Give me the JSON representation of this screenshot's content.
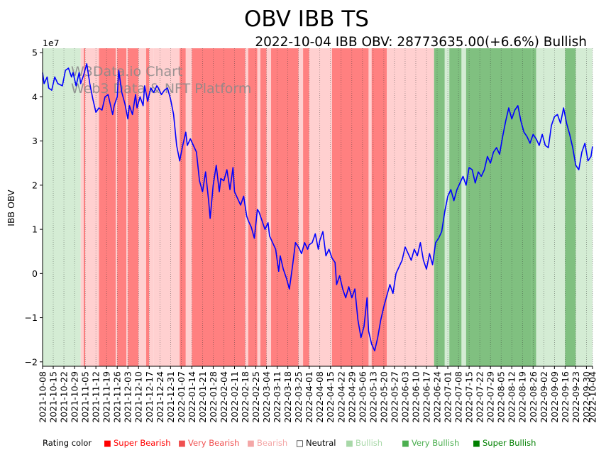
{
  "chart_data": {
    "type": "line",
    "title": "OBV IBB TS",
    "subtitle": "2022-10-04 IBB OBV: 28773635.00(+6.6%) Bullish",
    "ylabel": "IBB OBV",
    "xlabel": "",
    "y_multiplier_label": "1e7",
    "ylim": [
      -2.1,
      5.1
    ],
    "yticks": [
      "5",
      "4",
      "3",
      "2",
      "1",
      "0",
      "−1",
      "−2"
    ],
    "ytick_values": [
      5,
      4,
      3,
      2,
      1,
      0,
      -1,
      -2
    ],
    "grid": "vertical dotted lines at each x tick",
    "xlim": [
      "2021-10-08",
      "2022-10-04"
    ],
    "xticks": [
      "2021-10-08",
      "2021-10-15",
      "2021-10-22",
      "2021-10-29",
      "2021-11-05",
      "2021-11-12",
      "2021-11-19",
      "2021-11-26",
      "2021-12-03",
      "2021-12-10",
      "2021-12-17",
      "2021-12-24",
      "2021-12-31",
      "2022-01-07",
      "2022-01-14",
      "2022-01-21",
      "2022-01-28",
      "2022-02-04",
      "2022-02-11",
      "2022-02-18",
      "2022-02-25",
      "2022-03-04",
      "2022-03-11",
      "2022-03-18",
      "2022-03-25",
      "2022-04-01",
      "2022-04-08",
      "2022-04-15",
      "2022-04-22",
      "2022-04-29",
      "2022-05-06",
      "2022-05-13",
      "2022-05-20",
      "2022-05-27",
      "2022-06-03",
      "2022-06-10",
      "2022-06-17",
      "2022-06-24",
      "2022-07-01",
      "2022-07-08",
      "2022-07-15",
      "2022-07-22",
      "2022-07-29",
      "2022-08-05",
      "2022-08-12",
      "2022-08-19",
      "2022-08-26",
      "2022-09-02",
      "2022-09-09",
      "2022-09-16",
      "2022-09-23",
      "2022-09-30",
      "2022-10-04"
    ],
    "series": [
      {
        "color": "#0000ff",
        "x": [
          "2021-10-08",
          "2021-10-09",
          "2021-10-11",
          "2021-10-12",
          "2021-10-14",
          "2021-10-16",
          "2021-10-18",
          "2021-10-21",
          "2021-10-23",
          "2021-10-25",
          "2021-10-27",
          "2021-10-28",
          "2021-10-30",
          "2021-11-01",
          "2021-11-02",
          "2021-11-04",
          "2021-11-06",
          "2021-11-08",
          "2021-11-10",
          "2021-11-12",
          "2021-11-14",
          "2021-11-16",
          "2021-11-18",
          "2021-11-20",
          "2021-11-21",
          "2021-11-23",
          "2021-11-24",
          "2021-11-26",
          "2021-11-27",
          "2021-11-29",
          "2021-12-01",
          "2021-12-03",
          "2021-12-04",
          "2021-12-06",
          "2021-12-08",
          "2021-12-09",
          "2021-12-11",
          "2021-12-13",
          "2021-12-14",
          "2021-12-16",
          "2021-12-18",
          "2021-12-20",
          "2021-12-22",
          "2021-12-23",
          "2021-12-25",
          "2021-12-27",
          "2021-12-29",
          "2021-12-31",
          "2022-01-02",
          "2022-01-04",
          "2022-01-06",
          "2022-01-08",
          "2022-01-10",
          "2022-01-11",
          "2022-01-13",
          "2022-01-15",
          "2022-01-17",
          "2022-01-19",
          "2022-01-21",
          "2022-01-23",
          "2022-01-25",
          "2022-01-26",
          "2022-01-28",
          "2022-01-30",
          "2022-02-01",
          "2022-02-02",
          "2022-02-04",
          "2022-02-06",
          "2022-02-08",
          "2022-02-10",
          "2022-02-11",
          "2022-02-13",
          "2022-02-15",
          "2022-02-17",
          "2022-02-19",
          "2022-02-20",
          "2022-02-22",
          "2022-02-24",
          "2022-02-26",
          "2022-02-27",
          "2022-03-01",
          "2022-03-03",
          "2022-03-05",
          "2022-03-06",
          "2022-03-08",
          "2022-03-10",
          "2022-03-12",
          "2022-03-13",
          "2022-03-15",
          "2022-03-17",
          "2022-03-19",
          "2022-03-21",
          "2022-03-23",
          "2022-03-25",
          "2022-03-27",
          "2022-03-29",
          "2022-03-31",
          "2022-04-01",
          "2022-04-03",
          "2022-04-05",
          "2022-04-07",
          "2022-04-08",
          "2022-04-10",
          "2022-04-12",
          "2022-04-14",
          "2022-04-16",
          "2022-04-18",
          "2022-04-19",
          "2022-04-21",
          "2022-04-23",
          "2022-04-25",
          "2022-04-27",
          "2022-04-29",
          "2022-05-01",
          "2022-05-03",
          "2022-05-05",
          "2022-05-07",
          "2022-05-09",
          "2022-05-10",
          "2022-05-12",
          "2022-05-14",
          "2022-05-16",
          "2022-05-18",
          "2022-05-20",
          "2022-05-22",
          "2022-05-24",
          "2022-05-26",
          "2022-05-28",
          "2022-05-30",
          "2022-06-01",
          "2022-06-03",
          "2022-06-05",
          "2022-06-07",
          "2022-06-09",
          "2022-06-11",
          "2022-06-13",
          "2022-06-15",
          "2022-06-17",
          "2022-06-19",
          "2022-06-21",
          "2022-06-23",
          "2022-06-25",
          "2022-06-27",
          "2022-06-29",
          "2022-07-01",
          "2022-07-03",
          "2022-07-05",
          "2022-07-07",
          "2022-07-09",
          "2022-07-11",
          "2022-07-13",
          "2022-07-15",
          "2022-07-17",
          "2022-07-19",
          "2022-07-21",
          "2022-07-23",
          "2022-07-25",
          "2022-07-27",
          "2022-07-29",
          "2022-07-31",
          "2022-08-02",
          "2022-08-04",
          "2022-08-06",
          "2022-08-08",
          "2022-08-10",
          "2022-08-12",
          "2022-08-14",
          "2022-08-16",
          "2022-08-18",
          "2022-08-20",
          "2022-08-22",
          "2022-08-24",
          "2022-08-26",
          "2022-08-28",
          "2022-08-30",
          "2022-09-01",
          "2022-09-03",
          "2022-09-05",
          "2022-09-07",
          "2022-09-09",
          "2022-09-11",
          "2022-09-13",
          "2022-09-15",
          "2022-09-17",
          "2022-09-19",
          "2022-09-21",
          "2022-09-23",
          "2022-09-25",
          "2022-09-27",
          "2022-09-29",
          "2022-10-01",
          "2022-10-03",
          "2022-10-04"
        ],
        "values": [
          4.55,
          4.3,
          4.45,
          4.2,
          4.15,
          4.45,
          4.3,
          4.25,
          4.6,
          4.65,
          4.45,
          4.55,
          4.25,
          4.55,
          4.3,
          4.5,
          4.75,
          4.3,
          3.95,
          3.65,
          3.75,
          3.7,
          4.0,
          4.05,
          3.9,
          3.6,
          3.8,
          4.0,
          4.6,
          4.1,
          3.85,
          3.5,
          3.8,
          3.6,
          4.05,
          3.75,
          4.0,
          3.8,
          4.25,
          3.9,
          4.2,
          4.1,
          4.25,
          4.2,
          4.05,
          4.15,
          4.2,
          3.95,
          3.6,
          2.9,
          2.55,
          2.9,
          3.2,
          2.9,
          3.05,
          2.9,
          2.75,
          2.1,
          1.85,
          2.3,
          1.65,
          1.25,
          2.0,
          2.45,
          1.85,
          2.15,
          2.1,
          2.35,
          1.9,
          2.4,
          1.85,
          1.7,
          1.55,
          1.75,
          1.3,
          1.2,
          1.05,
          0.8,
          1.45,
          1.4,
          1.2,
          1.0,
          1.15,
          0.85,
          0.7,
          0.55,
          0.05,
          0.4,
          0.1,
          -0.1,
          -0.35,
          0.15,
          0.7,
          0.6,
          0.45,
          0.7,
          0.55,
          0.65,
          0.7,
          0.9,
          0.55,
          0.75,
          0.95,
          0.4,
          0.55,
          0.35,
          0.25,
          -0.25,
          -0.05,
          -0.35,
          -0.55,
          -0.3,
          -0.55,
          -0.35,
          -1.05,
          -1.45,
          -1.2,
          -0.55,
          -1.3,
          -1.6,
          -1.75,
          -1.45,
          -1.05,
          -0.75,
          -0.5,
          -0.25,
          -0.45,
          0.0,
          0.15,
          0.3,
          0.6,
          0.45,
          0.3,
          0.55,
          0.4,
          0.7,
          0.3,
          0.1,
          0.45,
          0.2,
          0.7,
          0.8,
          0.95,
          1.4,
          1.75,
          1.9,
          1.65,
          1.9,
          2.05,
          2.2,
          2.0,
          2.4,
          2.35,
          2.05,
          2.3,
          2.2,
          2.35,
          2.65,
          2.5,
          2.75,
          2.85,
          2.7,
          3.1,
          3.45,
          3.75,
          3.5,
          3.7,
          3.8,
          3.45,
          3.2,
          3.1,
          2.95,
          3.15,
          3.05,
          2.9,
          3.15,
          2.9,
          2.85,
          3.35,
          3.55,
          3.6,
          3.4,
          3.75,
          3.4,
          3.15,
          2.85,
          2.45,
          2.35,
          2.75,
          2.95,
          2.55,
          2.65,
          2.877
        ]
      }
    ],
    "rating_bands": [
      {
        "from": "2021-10-08",
        "to": "2021-11-02",
        "rating": "Bullish"
      },
      {
        "from": "2021-11-02",
        "to": "2021-11-04",
        "rating": "Bearish"
      },
      {
        "from": "2021-11-04",
        "to": "2021-11-05",
        "rating": "Very Bearish"
      },
      {
        "from": "2021-11-05",
        "to": "2021-11-14",
        "rating": "Bearish"
      },
      {
        "from": "2021-11-14",
        "to": "2021-11-25",
        "rating": "Very Bearish"
      },
      {
        "from": "2021-11-25",
        "to": "2021-11-26",
        "rating": "Bearish"
      },
      {
        "from": "2021-11-26",
        "to": "2021-12-02",
        "rating": "Very Bearish"
      },
      {
        "from": "2021-12-02",
        "to": "2021-12-03",
        "rating": "Bearish"
      },
      {
        "from": "2021-12-03",
        "to": "2021-12-10",
        "rating": "Very Bearish"
      },
      {
        "from": "2021-12-10",
        "to": "2021-12-15",
        "rating": "Bearish"
      },
      {
        "from": "2021-12-15",
        "to": "2021-12-17",
        "rating": "Very Bearish"
      },
      {
        "from": "2021-12-17",
        "to": "2021-12-20",
        "rating": "Bearish"
      },
      {
        "from": "2021-12-20",
        "to": "2022-01-06",
        "rating": "Bearish"
      },
      {
        "from": "2022-01-06",
        "to": "2022-01-10",
        "rating": "Very Bearish"
      },
      {
        "from": "2022-01-10",
        "to": "2022-01-14",
        "rating": "Bearish"
      },
      {
        "from": "2022-01-14",
        "to": "2022-02-18",
        "rating": "Very Bearish"
      },
      {
        "from": "2022-02-18",
        "to": "2022-02-20",
        "rating": "Bearish"
      },
      {
        "from": "2022-02-20",
        "to": "2022-02-26",
        "rating": "Very Bearish"
      },
      {
        "from": "2022-02-26",
        "to": "2022-02-28",
        "rating": "Bearish"
      },
      {
        "from": "2022-02-28",
        "to": "2022-03-04",
        "rating": "Very Bearish"
      },
      {
        "from": "2022-03-04",
        "to": "2022-03-07",
        "rating": "Bearish"
      },
      {
        "from": "2022-03-07",
        "to": "2022-03-25",
        "rating": "Very Bearish"
      },
      {
        "from": "2022-03-25",
        "to": "2022-03-28",
        "rating": "Bearish"
      },
      {
        "from": "2022-03-28",
        "to": "2022-04-01",
        "rating": "Very Bearish"
      },
      {
        "from": "2022-04-01",
        "to": "2022-04-16",
        "rating": "Bearish"
      },
      {
        "from": "2022-04-16",
        "to": "2022-05-10",
        "rating": "Very Bearish"
      },
      {
        "from": "2022-05-10",
        "to": "2022-05-12",
        "rating": "Bearish"
      },
      {
        "from": "2022-05-12",
        "to": "2022-05-22",
        "rating": "Very Bearish"
      },
      {
        "from": "2022-05-22",
        "to": "2022-06-22",
        "rating": "Bearish"
      },
      {
        "from": "2022-06-22",
        "to": "2022-06-29",
        "rating": "Very Bullish"
      },
      {
        "from": "2022-06-29",
        "to": "2022-07-02",
        "rating": "Bullish"
      },
      {
        "from": "2022-07-02",
        "to": "2022-07-10",
        "rating": "Very Bullish"
      },
      {
        "from": "2022-07-10",
        "to": "2022-07-13",
        "rating": "Bullish"
      },
      {
        "from": "2022-07-13",
        "to": "2022-08-25",
        "rating": "Very Bullish"
      },
      {
        "from": "2022-08-25",
        "to": "2022-08-28",
        "rating": "Very Bullish"
      },
      {
        "from": "2022-08-28",
        "to": "2022-09-16",
        "rating": "Bullish"
      },
      {
        "from": "2022-09-16",
        "to": "2022-09-23",
        "rating": "Very Bullish"
      },
      {
        "from": "2022-09-23",
        "to": "2022-10-04",
        "rating": "Bullish"
      }
    ],
    "watermark": [
      "W3Data.io Chart",
      "Web3 Data & NFT Platform"
    ],
    "legend": {
      "placement": "bottom",
      "label": "Rating color",
      "items": [
        {
          "name": "Super Bearish",
          "color": "#ff0000",
          "marker": "■"
        },
        {
          "name": "Very Bearish",
          "color": "#f05050",
          "marker": "■"
        },
        {
          "name": "Bearish",
          "color": "#f4a7a7",
          "marker": "■"
        },
        {
          "name": "Neutral",
          "color": "#000000",
          "marker": "□"
        },
        {
          "name": "Bullish",
          "color": "#a8d8a8",
          "marker": "■"
        },
        {
          "name": "Very Bullish",
          "color": "#4caf50",
          "marker": "■"
        },
        {
          "name": "Super Bullish",
          "color": "#008000",
          "marker": "■"
        }
      ]
    },
    "band_colors": {
      "Super Bearish": "#ff5050",
      "Very Bearish": "#ff8080",
      "Bearish": "#ffd0d0",
      "Neutral": "#ffffff",
      "Bullish": "#d4ecd4",
      "Very Bullish": "#80c080",
      "Super Bullish": "#3c9c3c"
    }
  }
}
